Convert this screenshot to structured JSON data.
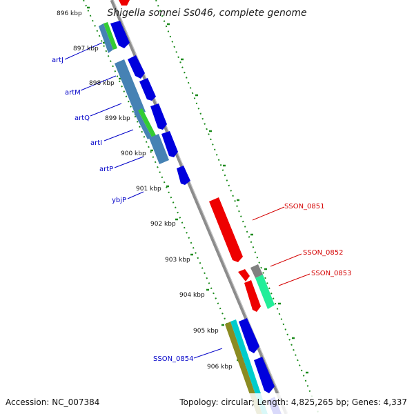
{
  "title": "Shigella sonnei Ss046, complete genome",
  "footer": {
    "accession": "Accession: NC_007384",
    "topology": "Topology: circular; Length: 4,825,265 bp; Genes: 4,337"
  },
  "ticks": [
    "896 kbp",
    "897 kbp",
    "898 kbp",
    "899 kbp",
    "900 kbp",
    "901 kbp",
    "902 kbp",
    "903 kbp",
    "904 kbp",
    "905 kbp",
    "906 kbp"
  ],
  "gene_labels_forward": [
    "artJ",
    "artM",
    "artQ",
    "artI",
    "artP",
    "ybjP",
    "SSON_0854"
  ],
  "gene_labels_reverse": [
    "SSON_0851",
    "SSON_0852",
    "SSON_0853"
  ],
  "colors": {
    "backbone": "#8c8c8c",
    "dotted_guide": "#1a8a1a",
    "forward_label": "#0000c8",
    "reverse_label": "#d40000",
    "cds_blue": "#0000dd",
    "cds_red": "#ee0000",
    "steel_blue": "#4682b4",
    "green": "#33cc33",
    "spring_green": "#22ee99",
    "olive": "#8b8b22",
    "cyan": "#00cccc",
    "gray": "#808080"
  }
}
